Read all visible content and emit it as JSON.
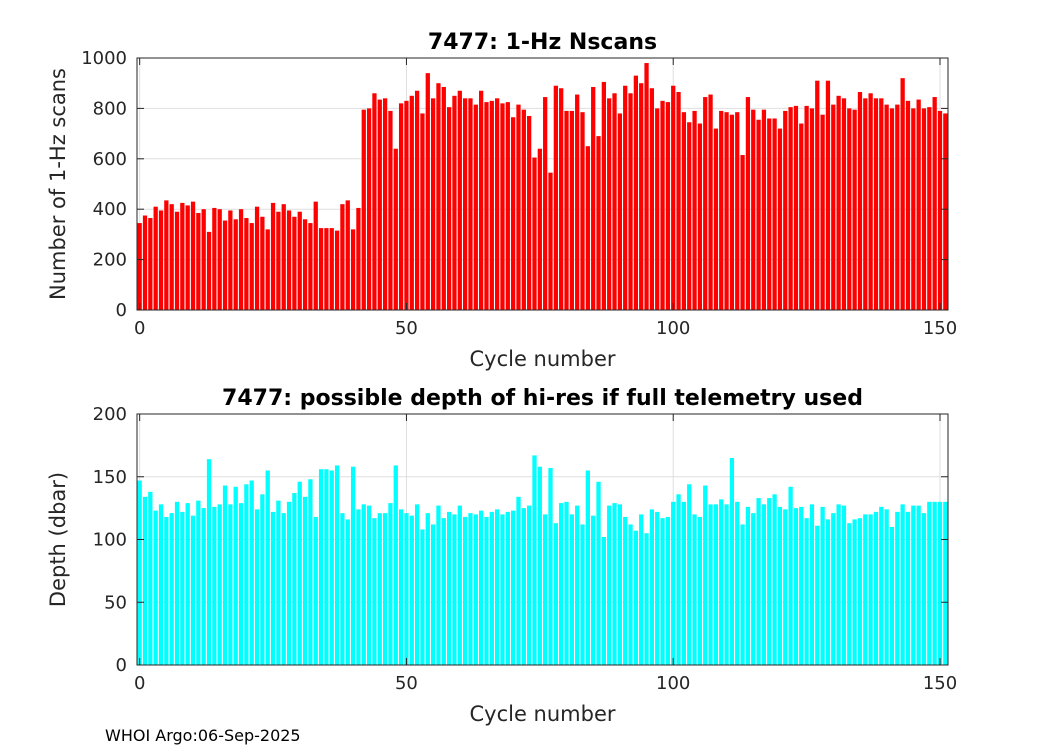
{
  "footer": "WHOI Argo:06-Sep-2025",
  "chart_data": [
    {
      "type": "bar",
      "title": "7477: 1-Hz Nscans",
      "xlabel": "Cycle number",
      "ylabel": "Number of 1-Hz scans",
      "xlim": [
        -0.5,
        151.5
      ],
      "ylim": [
        0,
        1000
      ],
      "xticks": [
        0,
        50,
        100,
        150
      ],
      "yticks": [
        0,
        200,
        400,
        600,
        800,
        1000
      ],
      "grid": true,
      "bar_color": "#ff0000",
      "x_start": 0,
      "values": [
        345,
        375,
        365,
        410,
        395,
        435,
        420,
        390,
        425,
        415,
        430,
        385,
        400,
        310,
        405,
        400,
        355,
        395,
        360,
        400,
        365,
        345,
        410,
        370,
        320,
        425,
        390,
        420,
        395,
        370,
        390,
        360,
        345,
        430,
        325,
        325,
        325,
        315,
        420,
        435,
        320,
        405,
        795,
        800,
        860,
        835,
        840,
        790,
        640,
        820,
        830,
        850,
        870,
        780,
        940,
        840,
        900,
        885,
        805,
        850,
        870,
        840,
        840,
        815,
        870,
        825,
        830,
        840,
        820,
        825,
        765,
        815,
        795,
        770,
        605,
        640,
        845,
        545,
        890,
        880,
        790,
        790,
        855,
        785,
        650,
        885,
        690,
        905,
        840,
        860,
        780,
        890,
        860,
        930,
        900,
        980,
        880,
        800,
        830,
        825,
        890,
        865,
        785,
        745,
        790,
        740,
        845,
        855,
        720,
        790,
        785,
        775,
        785,
        615,
        845,
        795,
        755,
        795,
        760,
        760,
        720,
        790,
        805,
        810,
        740,
        810,
        800,
        910,
        775,
        910,
        815,
        850,
        840,
        800,
        795,
        865,
        840,
        860,
        840,
        840,
        815,
        800,
        815,
        920,
        830,
        800,
        835,
        800,
        805,
        845,
        790,
        780
      ]
    },
    {
      "type": "bar",
      "title": "7477: possible depth of hi-res if full telemetry used",
      "xlabel": "Cycle number",
      "ylabel": "Depth (dbar)",
      "xlim": [
        -0.5,
        151.5
      ],
      "ylim": [
        0,
        200
      ],
      "xticks": [
        0,
        50,
        100,
        150
      ],
      "yticks": [
        0,
        50,
        100,
        150,
        200
      ],
      "grid": true,
      "bar_color": "#00ffff",
      "x_start": 0,
      "values": [
        147,
        134,
        138,
        123,
        128,
        118,
        121,
        130,
        122,
        129,
        119,
        131,
        125,
        164,
        126,
        128,
        143,
        128,
        142,
        129,
        144,
        147,
        124,
        136,
        155,
        122,
        131,
        121,
        130,
        137,
        146,
        134,
        148,
        118,
        156,
        156,
        155,
        159,
        121,
        116,
        158,
        124,
        128,
        127,
        117,
        121,
        121,
        129,
        159,
        124,
        121,
        119,
        128,
        108,
        121,
        112,
        127,
        117,
        122,
        120,
        127,
        118,
        121,
        120,
        123,
        118,
        122,
        124,
        120,
        122,
        123,
        134,
        125,
        127,
        167,
        158,
        120,
        157,
        113,
        129,
        130,
        120,
        127,
        112,
        155,
        119,
        146,
        102,
        127,
        129,
        128,
        118,
        112,
        107,
        120,
        105,
        124,
        122,
        117,
        118,
        130,
        136,
        130,
        144,
        120,
        118,
        143,
        128,
        128,
        132,
        128,
        165,
        130,
        112,
        126,
        121,
        133,
        128,
        133,
        136,
        126,
        124,
        142,
        125,
        126,
        117,
        128,
        111,
        126,
        116,
        121,
        128,
        127,
        113,
        116,
        117,
        120,
        120,
        122,
        126,
        124,
        110,
        122,
        128,
        122,
        127,
        127,
        121,
        130,
        130,
        130,
        130
      ]
    }
  ]
}
